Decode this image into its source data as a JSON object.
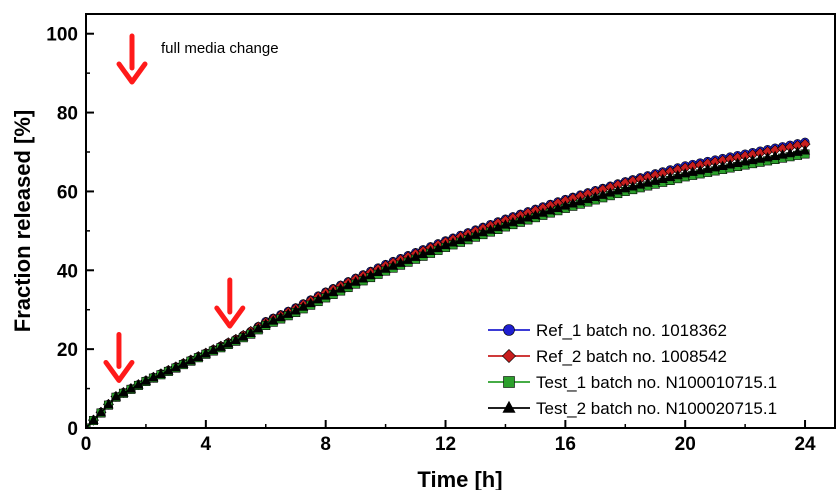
{
  "chart_data": {
    "type": "line",
    "xlabel": "Time [h]",
    "ylabel": "Fraction released [%]",
    "xlim": [
      0,
      25
    ],
    "ylim": [
      0,
      105
    ],
    "xticks": [
      0,
      4,
      8,
      12,
      16,
      20,
      24
    ],
    "yticks": [
      0,
      20,
      40,
      60,
      80,
      100
    ],
    "legend_position": "bottom-right",
    "annotation": "full media change",
    "media_change_times": [
      1,
      4.8
    ],
    "series": [
      {
        "name": "Ref_1 batch no. 1018362",
        "color": "#1f1fd0",
        "marker": "circle",
        "x": [
          0,
          0.5,
          1,
          1.5,
          2,
          3,
          4,
          5,
          5.5,
          6,
          7,
          8,
          9,
          10,
          12,
          14,
          16,
          18,
          20,
          22,
          24
        ],
        "y": [
          0,
          4,
          8,
          10,
          12,
          15.5,
          19,
          22.5,
          24.5,
          27,
          30.5,
          34.5,
          38,
          41.5,
          47.5,
          53,
          58,
          62.5,
          66.5,
          69.5,
          72.5
        ]
      },
      {
        "name": "Ref_2 batch no. 1008542",
        "color": "#c81e1e",
        "marker": "diamond",
        "x": [
          0,
          0.5,
          1,
          1.5,
          2,
          3,
          4,
          5,
          5.5,
          6,
          7,
          8,
          9,
          10,
          12,
          14,
          16,
          18,
          20,
          22,
          24
        ],
        "y": [
          0,
          4,
          8,
          10,
          12,
          15.5,
          19,
          22.5,
          24.5,
          26.8,
          30.3,
          34.3,
          37.8,
          41.2,
          47.2,
          52.7,
          57.7,
          62.2,
          66,
          69,
          72
        ]
      },
      {
        "name": "Test_1 batch no. N100010715.1",
        "color": "#2ca02c",
        "marker": "square",
        "x": [
          0,
          0.5,
          1,
          1.5,
          2,
          3,
          4,
          5,
          5.5,
          6,
          7,
          8,
          9,
          10,
          12,
          14,
          16,
          18,
          20,
          22,
          24
        ],
        "y": [
          0,
          3.8,
          7.8,
          9.8,
          11.8,
          15.2,
          18.7,
          22,
          23.8,
          26,
          29.3,
          33,
          36.5,
          39.8,
          45.8,
          51,
          55.7,
          60,
          63.7,
          66.7,
          69.5
        ]
      },
      {
        "name": "Test_2 batch no. N100020715.1",
        "color": "#000000",
        "marker": "triangle",
        "x": [
          0,
          0.5,
          1,
          1.5,
          2,
          3,
          4,
          5,
          5.5,
          6,
          7,
          8,
          9,
          10,
          12,
          14,
          16,
          18,
          20,
          22,
          24
        ],
        "y": [
          0,
          3.9,
          7.9,
          9.9,
          11.9,
          15.3,
          18.8,
          22.2,
          24,
          26.3,
          29.7,
          33.5,
          37,
          40.3,
          46.3,
          51.5,
          56.3,
          60.7,
          64.5,
          67.5,
          70.3
        ]
      }
    ]
  }
}
